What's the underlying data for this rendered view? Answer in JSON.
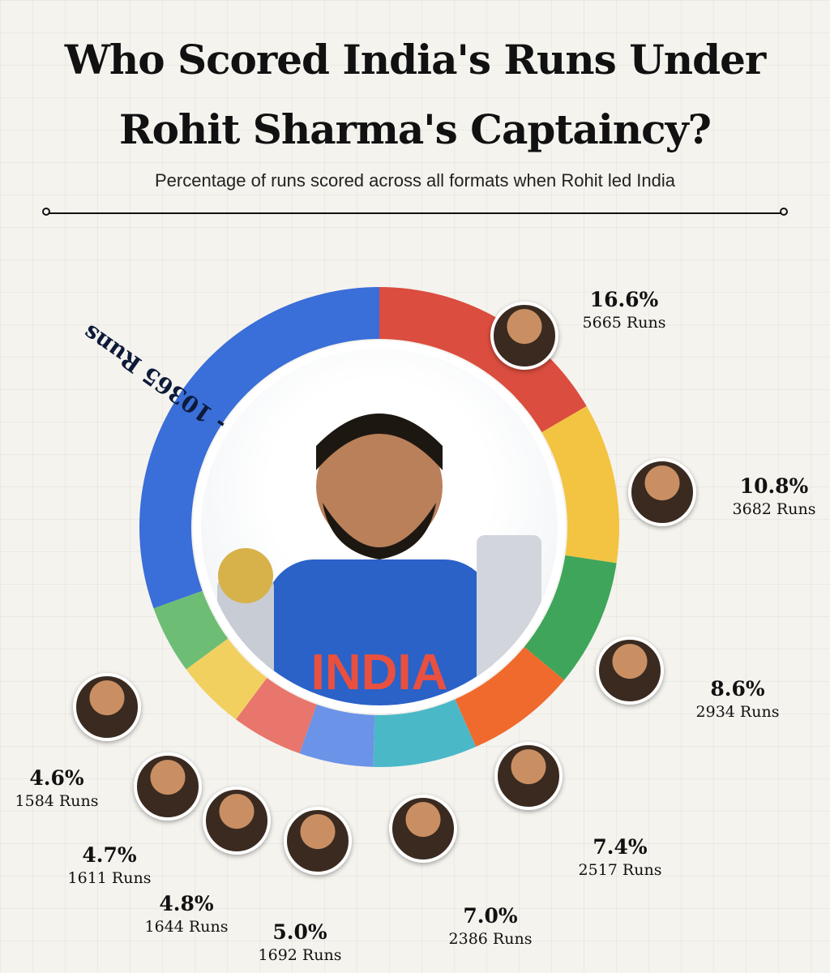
{
  "title_line1": "Who Scored India's Runs Under",
  "title_line2": "Rohit Sharma's Captaincy?",
  "subtitle": "Percentage of runs scored across all formats when Rohit led India",
  "colors": {
    "red": "#db4d3f",
    "yellow": "#f3c342",
    "green": "#3fa55a",
    "orange": "#f06a2d",
    "teal": "#4bb8c8",
    "lightblue": "#6b93e8",
    "salmon": "#e8766c",
    "lightyellow": "#f1d060",
    "lightgreen": "#6dbd74",
    "blue": "#3a6ed8"
  },
  "chart_data": {
    "type": "pie",
    "title": "Who Scored India's Runs Under Rohit Sharma's Captaincy?",
    "subtitle": "Percentage of runs scored across all formats when Rohit led India",
    "slices": [
      {
        "percent": 16.6,
        "runs": 5665,
        "pct_label": "16.6%",
        "runs_label": "5665 Runs",
        "color": "#db4d3f",
        "avatar": "player-1-portrait"
      },
      {
        "percent": 10.8,
        "runs": 3682,
        "pct_label": "10.8%",
        "runs_label": "3682 Runs",
        "color": "#f3c342",
        "avatar": "player-2-portrait"
      },
      {
        "percent": 8.6,
        "runs": 2934,
        "pct_label": "8.6%",
        "runs_label": "2934 Runs",
        "color": "#3fa55a",
        "avatar": "player-3-portrait"
      },
      {
        "percent": 7.4,
        "runs": 2517,
        "pct_label": "7.4%",
        "runs_label": "2517 Runs",
        "color": "#f06a2d",
        "avatar": "player-4-portrait"
      },
      {
        "percent": 7.0,
        "runs": 2386,
        "pct_label": "7.0%",
        "runs_label": "2386 Runs",
        "color": "#4bb8c8",
        "avatar": "player-5-portrait"
      },
      {
        "percent": 5.0,
        "runs": 1692,
        "pct_label": "5.0%",
        "runs_label": "1692 Runs",
        "color": "#6b93e8",
        "avatar": "player-6-portrait"
      },
      {
        "percent": 4.8,
        "runs": 1644,
        "pct_label": "4.8%",
        "runs_label": "1644 Runs",
        "color": "#e8766c",
        "avatar": "player-7-portrait"
      },
      {
        "percent": 4.7,
        "runs": 1611,
        "pct_label": "4.7%",
        "runs_label": "1611 Runs",
        "color": "#f1d060",
        "avatar": "player-8-portrait"
      },
      {
        "percent": 4.6,
        "runs": 1584,
        "pct_label": "4.6%",
        "runs_label": "1584 Runs",
        "color": "#6dbd74",
        "avatar": "player-9-portrait"
      },
      {
        "percent": 30.5,
        "runs": 10365,
        "arc_label": "Others - 10365 Runs",
        "color": "#3a6ed8"
      }
    ]
  }
}
